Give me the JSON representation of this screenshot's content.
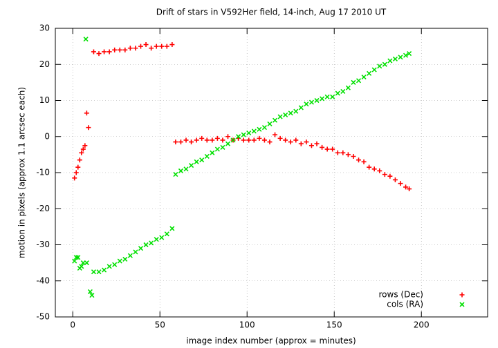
{
  "chart_data": {
    "type": "scatter",
    "title": "Drift of stars in V592Her field, 14-inch, Aug 17 2010 UT",
    "x_label": "image index number (approx = minutes)",
    "y_label": "motion in pixels (approx 1.1 arcsec each)",
    "xlim": [
      -10,
      238
    ],
    "xticks": [
      0,
      50,
      100,
      150,
      200
    ],
    "ylim": [
      -50,
      30
    ],
    "yticks": [
      -50,
      -40,
      -30,
      -20,
      -10,
      0,
      10,
      20,
      30
    ],
    "grid": true,
    "legend": "bottom-right",
    "series": [
      {
        "name": "rows (Dec)",
        "color": "#ff0000",
        "marker": "plus",
        "x": [
          1,
          2,
          3,
          4,
          5,
          6,
          7,
          8,
          9,
          12,
          15,
          18,
          21,
          24,
          27,
          30,
          33,
          36,
          39,
          42,
          45,
          48,
          51,
          54,
          57,
          59,
          62,
          65,
          68,
          71,
          74,
          77,
          80,
          83,
          86,
          89,
          92,
          95,
          98,
          101,
          104,
          107,
          110,
          113,
          116,
          119,
          122,
          125,
          128,
          131,
          134,
          137,
          140,
          143,
          146,
          149,
          152,
          155,
          158,
          161,
          164,
          167,
          170,
          173,
          176,
          179,
          182,
          185,
          188,
          191,
          193
        ],
        "values": [
          -11.5,
          -10,
          -8.5,
          -6.5,
          -4.5,
          -3.5,
          -2.5,
          6.5,
          2.5,
          23.5,
          23,
          23.5,
          23.5,
          24,
          24,
          24,
          24.5,
          24.5,
          25,
          25.5,
          24.5,
          25,
          25,
          25,
          25.5,
          -1.5,
          -1.5,
          -1,
          -1.5,
          -1,
          -0.5,
          -1,
          -1,
          -0.5,
          -1,
          0,
          -1,
          -0.5,
          -1,
          -1,
          -1,
          -0.5,
          -1,
          -1.5,
          0.5,
          -0.5,
          -1,
          -1.5,
          -1,
          -2,
          -1.5,
          -2.5,
          -2,
          -3,
          -3.5,
          -3.5,
          -4.5,
          -4.5,
          -5,
          -5.5,
          -6.5,
          -7,
          -8.5,
          -9,
          -9.5,
          -10.5,
          -11,
          -12,
          -13,
          -14,
          -14.5
        ]
      },
      {
        "name": "cols (RA)",
        "color": "#00e000",
        "marker": "cross",
        "x": [
          1,
          2,
          3,
          4,
          5,
          6,
          7.5,
          8,
          10,
          11,
          12,
          15,
          18,
          21,
          24,
          27,
          30,
          33,
          36,
          39,
          42,
          45,
          48,
          51,
          54,
          57,
          59,
          62,
          65,
          68,
          71,
          74,
          77,
          80,
          83,
          86,
          89,
          92,
          95,
          98,
          101,
          104,
          107,
          110,
          113,
          116,
          119,
          122,
          125,
          128,
          131,
          134,
          137,
          140,
          143,
          146,
          149,
          152,
          155,
          158,
          161,
          164,
          167,
          170,
          173,
          176,
          179,
          182,
          185,
          188,
          191,
          193
        ],
        "values": [
          -34.5,
          -33.5,
          -33.5,
          -36.5,
          -36,
          -35,
          27,
          -35,
          -43,
          -44,
          -37.5,
          -37.5,
          -37,
          -36,
          -35.5,
          -34.5,
          -34,
          -33,
          -32,
          -31,
          -30,
          -29.5,
          -28.5,
          -28,
          -27,
          -25.5,
          -10.5,
          -9.5,
          -9,
          -8,
          -7,
          -6.5,
          -5.5,
          -4.5,
          -3.5,
          -3,
          -2,
          -1,
          0,
          0.5,
          1,
          1.5,
          2,
          2.5,
          3.5,
          4.5,
          5.5,
          6,
          6.5,
          7,
          8,
          9,
          9.5,
          10,
          10.5,
          11,
          11,
          12,
          12.5,
          13.5,
          15,
          15.5,
          16.5,
          17.5,
          18.5,
          19.5,
          20,
          21,
          21.5,
          22,
          22.5,
          23
        ]
      }
    ]
  }
}
